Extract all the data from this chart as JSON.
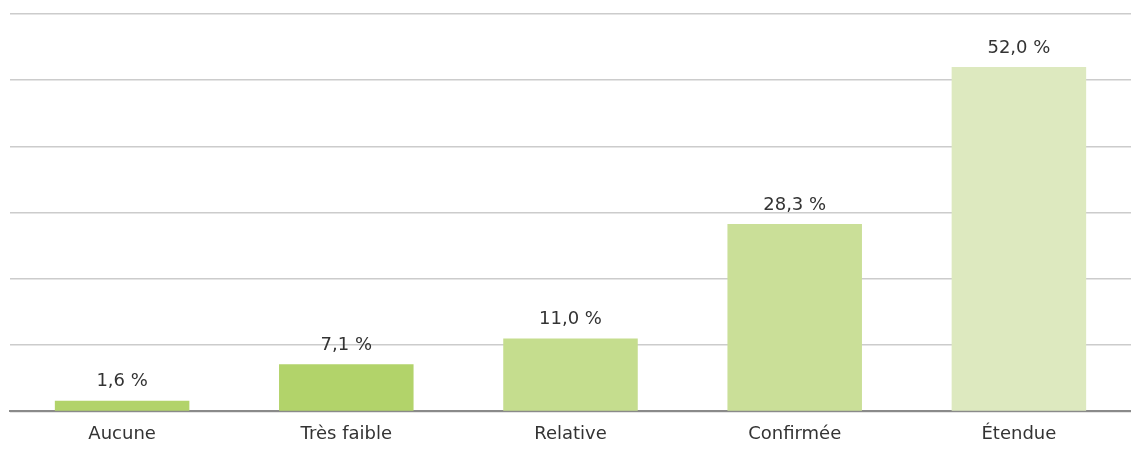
{
  "chart_data": {
    "type": "bar",
    "categories": [
      "Aucune",
      "Très faible",
      "Relative",
      "Confirmée",
      "Étendue"
    ],
    "values": [
      1.6,
      7.1,
      11.0,
      28.3,
      52.0
    ],
    "colors": [
      "#b2d36a",
      "#b2d36a",
      "#c5dd8e",
      "#cadf98",
      "#dde9bf"
    ],
    "value_labels": [
      "1,6 %",
      "7,1 %",
      "11,0 %",
      "28,3 %",
      "52,0 %"
    ],
    "ylim": [
      0,
      60
    ],
    "yticks": [
      {
        "value": 0,
        "label": null
      },
      {
        "value": 10,
        "label": null
      },
      {
        "value": 20,
        "label": null
      },
      {
        "value": 30,
        "label": null
      },
      {
        "value": 40,
        "label": null
      },
      {
        "value": 50,
        "label": null
      },
      {
        "value": 60,
        "label": null
      }
    ],
    "grid": "y",
    "legend": false
  }
}
